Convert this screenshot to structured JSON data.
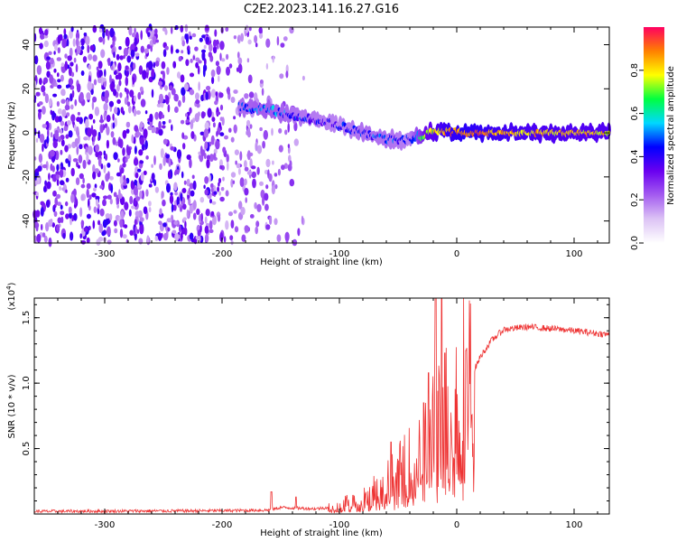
{
  "title": "C2E2.2023.141.16.27.G16",
  "top_panel": {
    "type": "heatmap",
    "xlabel": "Height of straight line (km)",
    "ylabel": "Frequency (Hz)",
    "xlim": [
      -360,
      130
    ],
    "ylim": [
      -50,
      48
    ],
    "xticks": [
      -300,
      -200,
      -100,
      0,
      100
    ],
    "xtick_labels": [
      "-300",
      "-200",
      "-100",
      "0",
      "100"
    ],
    "yticks": [
      -40,
      -20,
      0,
      20,
      40
    ],
    "ytick_labels": [
      "-40",
      "-20",
      "0",
      "20",
      "40"
    ],
    "colorbar": {
      "label": "Normalized spectral amplitude",
      "range": [
        0,
        1
      ],
      "ticks": [
        0.0,
        0.2,
        0.4,
        0.6,
        0.8
      ],
      "tick_labels": [
        "0.0",
        "0.2",
        "0.4",
        "0.6",
        "0.8"
      ],
      "colors": [
        "#ffffff",
        "#dcc3f5",
        "#a45cf0",
        "#6a00f0",
        "#0000ff",
        "#00d8ff",
        "#00ff40",
        "#ffff00",
        "#ff8000",
        "#ff0060"
      ]
    },
    "ridge": {
      "x": [
        -185,
        -170,
        -155,
        -140,
        -120,
        -100,
        -80,
        -60,
        -40,
        -25,
        -10,
        5,
        30,
        60,
        100,
        130
      ],
      "freq": [
        12,
        11,
        10,
        8,
        6,
        3,
        0,
        -3,
        -3,
        0,
        1,
        0,
        0,
        0,
        0,
        0
      ],
      "amplitude": [
        0.45,
        0.5,
        0.5,
        0.45,
        0.42,
        0.4,
        0.45,
        0.45,
        0.4,
        0.75,
        0.85,
        0.9,
        0.85,
        0.82,
        0.8,
        0.8
      ]
    },
    "noise_region_x": [
      -360,
      -130
    ]
  },
  "bottom_panel": {
    "type": "line",
    "xlabel": "Height of straight line (km)",
    "ylabel": "SNR (10 * v/v)",
    "multiplier": "(x10",
    "multiplier_exp": "4",
    "multiplier_close": ")",
    "xlim": [
      -360,
      130
    ],
    "ylim": [
      0,
      1.65
    ],
    "xticks": [
      -300,
      -200,
      -100,
      0,
      100
    ],
    "xtick_labels": [
      "-300",
      "-200",
      "-100",
      "0",
      "100"
    ],
    "yticks": [
      0.5,
      1.0,
      1.5
    ],
    "ytick_labels": [
      "0.5",
      "1.0",
      "1.5"
    ],
    "line_color": "#ee3333",
    "envelope": {
      "x": [
        -360,
        -200,
        -160,
        -150,
        -120,
        -100,
        -80,
        -60,
        -40,
        -25,
        -15,
        0,
        10,
        20,
        30,
        40,
        60,
        90,
        130
      ],
      "y": [
        0.02,
        0.025,
        0.03,
        0.05,
        0.04,
        0.06,
        0.12,
        0.22,
        0.35,
        0.5,
        0.65,
        0.8,
        1.0,
        1.2,
        1.33,
        1.41,
        1.43,
        1.41,
        1.37
      ]
    },
    "spikes": [
      {
        "x": -158,
        "y": 0.17
      },
      {
        "x": -137,
        "y": 0.13
      },
      {
        "x": -56,
        "y": 0.55
      },
      {
        "x": -28,
        "y": 0.85
      },
      {
        "x": -24,
        "y": 1.08
      },
      {
        "x": -18,
        "y": 1.65
      },
      {
        "x": -13,
        "y": 1.65
      },
      {
        "x": -10,
        "y": 1.23
      },
      {
        "x": 8,
        "y": 1.25
      }
    ]
  }
}
